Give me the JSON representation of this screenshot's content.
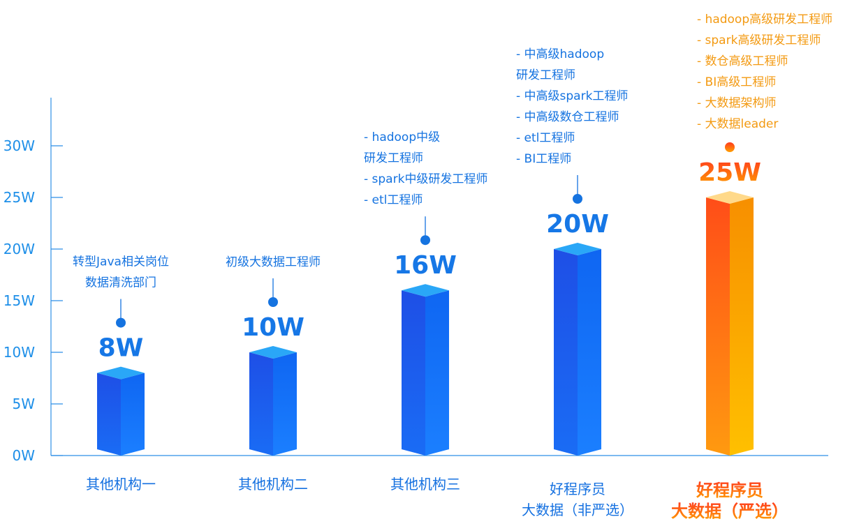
{
  "chart_data": {
    "type": "bar",
    "ylim": [
      0,
      35
    ],
    "yticks": [
      "0W",
      "5W",
      "10W",
      "15W",
      "20W",
      "25W",
      "30W"
    ],
    "grid": false,
    "categories": [
      [
        "其他机构一"
      ],
      [
        "其他机构二"
      ],
      [
        "其他机构三"
      ],
      [
        "好程序员",
        "大数据（非严选）"
      ],
      [
        "好程序员",
        "大数据（严选）"
      ]
    ],
    "values": [
      8,
      10,
      16,
      20,
      25
    ],
    "value_labels": [
      "8W",
      "10W",
      "16W",
      "20W",
      "25W"
    ],
    "annotations": [
      [
        "转型Java相关岗位",
        "数据清洗部门"
      ],
      [
        "初级大数据工程师"
      ],
      [
        "- hadoop中级",
        "  研发工程师",
        "- spark中级研发工程师",
        "- etl工程师"
      ],
      [
        "- 中高级hadoop",
        "  研发工程师",
        "- 中高级spark工程师",
        "- 中高级数仓工程师",
        "- etl工程师",
        "- BI工程师"
      ],
      [
        "- hadoop高级研发工程师",
        "- spark高级研发工程师",
        "- 数仓高级工程师",
        "- BI高级工程师",
        "- 大数据架构师",
        "- 大数据leader"
      ]
    ],
    "highlight_index": 4,
    "colors": {
      "axis": "#2e8fe6",
      "tick": "#1e8fe8",
      "bar_front_top": "#1e4fe6",
      "bar_front_bottom": "#1a6cf5",
      "bar_side_top": "#0f66f2",
      "bar_side_bottom": "#1b7fff",
      "bar_top": "#2aa7f7",
      "highlight_front_top": "#ff4d18",
      "highlight_front_bottom": "#ff9a10",
      "highlight_side_top": "#f78f00",
      "highlight_side_bottom": "#ffc000",
      "highlight_top": "#ffd98a",
      "highlight_text_top": "#ff3b1f",
      "highlight_text_bottom": "#ffa000"
    }
  }
}
